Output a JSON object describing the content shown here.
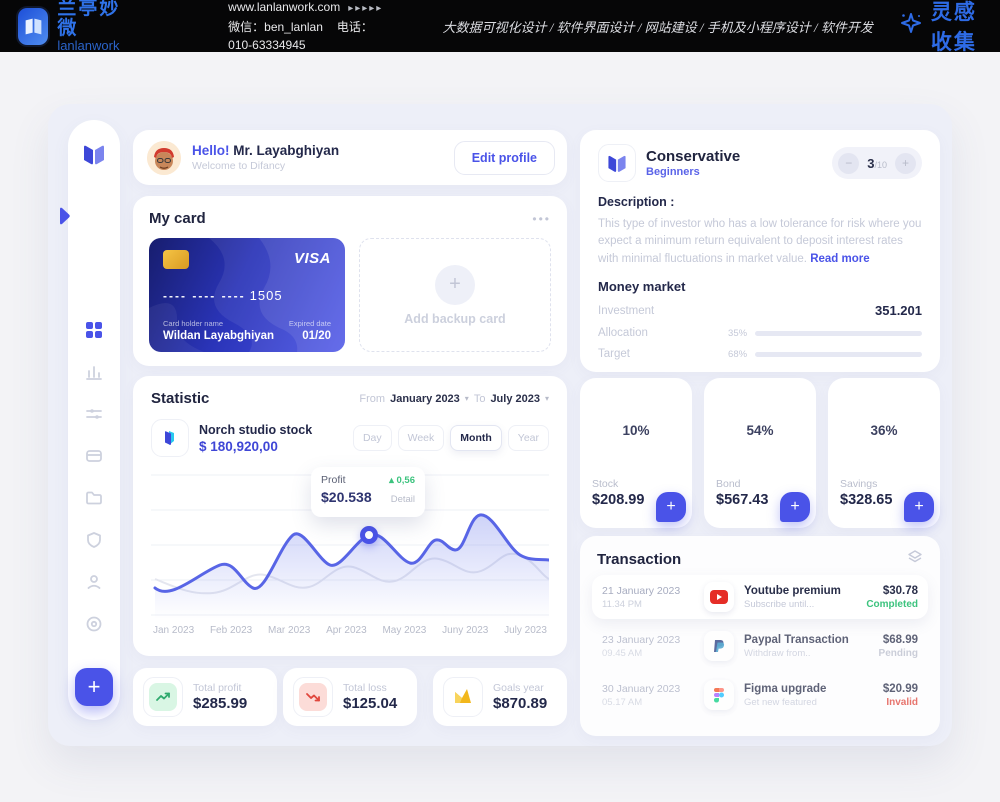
{
  "topbar": {
    "brand_cn": "兰亭妙微",
    "brand_en": "lanlanwork",
    "website": "www.lanlanwork.com",
    "website_arrows": "▸▸▸▸▸",
    "wechat": "微信：ben_lanlan",
    "phone": "电话：010-63334945",
    "services": "大数据可视化设计 / 软件界面设计 / 网站建设 / 手机及小程序设计 / 软件开发",
    "collect": "灵感收集"
  },
  "profile": {
    "greeting": "Hello!",
    "name": "Mr. Layabghiyan",
    "welcome": "Welcome to Difancy",
    "edit_button": "Edit profile"
  },
  "my_card": {
    "title": "My card",
    "menu": "•••",
    "visa_brand": "VISA",
    "number_mask": "---- ---- ----",
    "number_last": "1505",
    "holder_label": "Card holder name",
    "holder_name": "Wildan Layabghiyan",
    "expired_label": "Expired date",
    "expired_value": "01/20",
    "backup_plus": "+",
    "backup_label": "Add backup card"
  },
  "statistic": {
    "title": "Statistic",
    "from_label": "From",
    "from_value": "January 2023",
    "to_label": "To",
    "to_value": "July 2023",
    "stock_name": "Norch studio stock",
    "stock_value": "$ 180,920,00",
    "periods": [
      "Day",
      "Week",
      "Month",
      "Year"
    ],
    "active_period": "Month",
    "tooltip_label": "Profit",
    "tooltip_delta": "0,56",
    "tooltip_value": "$20.538",
    "tooltip_detail": "Detail",
    "months": [
      "Jan 2023",
      "Feb 2023",
      "Mar 2023",
      "Apr 2023",
      "May 2023",
      "Juny 2023",
      "July 2023"
    ],
    "chart_data": {
      "type": "line",
      "x": [
        "Jan 2023",
        "Feb 2023",
        "Mar 2023",
        "Apr 2023",
        "May 2023",
        "Juny 2023",
        "July 2023"
      ],
      "series": [
        {
          "name": "profit",
          "values": [
            9.5,
            14.2,
            19.8,
            20.538,
            15.4,
            23.1,
            16.8
          ]
        },
        {
          "name": "secondary",
          "values": [
            12.0,
            11.0,
            14.5,
            16.0,
            18.0,
            20.5,
            13.5
          ]
        }
      ],
      "highlight": {
        "x": "Apr 2023",
        "value": "$20.538",
        "delta": "+0,56"
      },
      "grid": "horizontal",
      "legend": "none"
    }
  },
  "summary": {
    "profit_label": "Total profit",
    "profit_value": "$285.99",
    "loss_label": "Total loss",
    "loss_value": "$125.04",
    "goals_label": "Goals year",
    "goals_value": "$870.89"
  },
  "advisor": {
    "title": "Conservative",
    "subtitle": "Beginners",
    "stepper_minus": "−",
    "stepper_current": "3",
    "stepper_total": "/10",
    "stepper_plus": "+",
    "description_label": "Description :",
    "description": "This type of investor who has a low tolerance for risk where you expect a minimum return equivalent to deposit interest rates with minimal fluctuations in market value. ",
    "read_more": "Read more",
    "money_market_title": "Money market",
    "investment_label": "Investment",
    "investment_value": "351.201",
    "allocation_label": "Allocation",
    "allocation_percent": "35%",
    "allocation_fill": 52,
    "target_label": "Target",
    "target_percent": "68%",
    "target_fill": 71
  },
  "portfolio": {
    "items": [
      {
        "percent": "10%",
        "label": "Stock",
        "value": "$208.99",
        "plus": "+"
      },
      {
        "percent": "54%",
        "label": "Bond",
        "value": "$567.43",
        "plus": "+"
      },
      {
        "percent": "36%",
        "label": "Savings",
        "value": "$328.65",
        "plus": "+"
      }
    ]
  },
  "transactions": {
    "title": "Transaction",
    "rows": [
      {
        "date": "21 January 2023",
        "time": "11.34 PM",
        "name": "Youtube premium",
        "desc": "Subscribe until...",
        "amount": "$30.78",
        "status": "Completed"
      },
      {
        "date": "23 January 2023",
        "time": "09.45 AM",
        "name": "Paypal Transaction",
        "desc": "Withdraw from..",
        "amount": "$68.99",
        "status": "Pending"
      },
      {
        "date": "30 January 2023",
        "time": "05.17 AM",
        "name": "Figma upgrade",
        "desc": "Get new featured",
        "amount": "$20.99",
        "status": "Invalid"
      }
    ]
  },
  "colors": {
    "primary": "#4a53e8",
    "green": "#3cc37e",
    "red": "#e0473d",
    "gold": "#f2b71c"
  }
}
